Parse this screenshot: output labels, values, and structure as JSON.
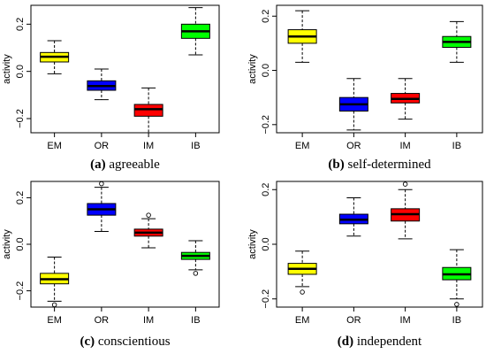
{
  "chart_data": [
    {
      "type": "box",
      "caption_letter": "(a)",
      "caption_text": "agreeable",
      "ylabel": "activity",
      "ylim": [
        -0.26,
        0.28
      ],
      "yticks": [
        -0.2,
        0.0,
        0.2
      ],
      "ytick_labels": [
        "−0.2",
        "0.0",
        "0.2"
      ],
      "categories": [
        "EM",
        "OR",
        "IM",
        "IB"
      ],
      "colors": [
        "#ffff00",
        "#0000ff",
        "#ff0000",
        "#00ff00"
      ],
      "boxes": [
        {
          "whisker_low": -0.01,
          "q1": 0.04,
          "median": 0.062,
          "q3": 0.08,
          "whisker_high": 0.13,
          "outliers": []
        },
        {
          "whisker_low": -0.12,
          "q1": -0.08,
          "median": -0.062,
          "q3": -0.04,
          "whisker_high": 0.01,
          "outliers": []
        },
        {
          "whisker_low": -0.26,
          "q1": -0.19,
          "median": -0.16,
          "q3": -0.14,
          "whisker_high": -0.07,
          "outliers": []
        },
        {
          "whisker_low": 0.07,
          "q1": 0.14,
          "median": 0.17,
          "q3": 0.2,
          "whisker_high": 0.27,
          "outliers": []
        }
      ]
    },
    {
      "type": "box",
      "caption_letter": "(b)",
      "caption_text": "self-determined",
      "ylabel": "activity",
      "ylim": [
        -0.23,
        0.24
      ],
      "yticks": [
        -0.2,
        0.0,
        0.2
      ],
      "ytick_labels": [
        "−0.2",
        "0.0",
        "0.2"
      ],
      "categories": [
        "EM",
        "OR",
        "IM",
        "IB"
      ],
      "colors": [
        "#ffff00",
        "#0000ff",
        "#ff0000",
        "#00ff00"
      ],
      "boxes": [
        {
          "whisker_low": 0.03,
          "q1": 0.1,
          "median": 0.125,
          "q3": 0.15,
          "whisker_high": 0.22,
          "outliers": []
        },
        {
          "whisker_low": -0.22,
          "q1": -0.15,
          "median": -0.125,
          "q3": -0.1,
          "whisker_high": -0.03,
          "outliers": []
        },
        {
          "whisker_low": -0.18,
          "q1": -0.12,
          "median": -0.105,
          "q3": -0.085,
          "whisker_high": -0.03,
          "outliers": []
        },
        {
          "whisker_low": 0.03,
          "q1": 0.085,
          "median": 0.105,
          "q3": 0.125,
          "whisker_high": 0.18,
          "outliers": []
        }
      ]
    },
    {
      "type": "box",
      "caption_letter": "(c)",
      "caption_text": "conscientious",
      "ylabel": "activity",
      "ylim": [
        -0.27,
        0.27
      ],
      "yticks": [
        -0.2,
        0.0,
        0.2
      ],
      "ytick_labels": [
        "−0.2",
        "0.0",
        "0.2"
      ],
      "categories": [
        "EM",
        "OR",
        "IM",
        "IB"
      ],
      "colors": [
        "#ffff00",
        "#0000ff",
        "#ff0000",
        "#00ff00"
      ],
      "boxes": [
        {
          "whisker_low": -0.245,
          "q1": -0.17,
          "median": -0.15,
          "q3": -0.125,
          "whisker_high": -0.055,
          "outliers": [
            -0.26
          ]
        },
        {
          "whisker_low": 0.055,
          "q1": 0.125,
          "median": 0.15,
          "q3": 0.175,
          "whisker_high": 0.245,
          "outliers": [
            0.26
          ]
        },
        {
          "whisker_low": -0.015,
          "q1": 0.035,
          "median": 0.05,
          "q3": 0.065,
          "whisker_high": 0.11,
          "outliers": [
            0.125
          ]
        },
        {
          "whisker_low": -0.11,
          "q1": -0.065,
          "median": -0.05,
          "q3": -0.035,
          "whisker_high": 0.015,
          "outliers": [
            -0.125
          ]
        }
      ]
    },
    {
      "type": "box",
      "caption_letter": "(d)",
      "caption_text": "independent",
      "ylabel": "activity",
      "ylim": [
        -0.23,
        0.23
      ],
      "yticks": [
        -0.2,
        0.0,
        0.2
      ],
      "ytick_labels": [
        "−0.2",
        "0.0",
        "0.2"
      ],
      "categories": [
        "EM",
        "OR",
        "IM",
        "IB"
      ],
      "colors": [
        "#ffff00",
        "#0000ff",
        "#ff0000",
        "#00ff00"
      ],
      "boxes": [
        {
          "whisker_low": -0.155,
          "q1": -0.11,
          "median": -0.09,
          "q3": -0.07,
          "whisker_high": -0.025,
          "outliers": [
            -0.175
          ]
        },
        {
          "whisker_low": 0.03,
          "q1": 0.075,
          "median": 0.09,
          "q3": 0.11,
          "whisker_high": 0.17,
          "outliers": []
        },
        {
          "whisker_low": 0.02,
          "q1": 0.085,
          "median": 0.11,
          "q3": 0.13,
          "whisker_high": 0.2,
          "outliers": [
            0.22
          ]
        },
        {
          "whisker_low": -0.2,
          "q1": -0.13,
          "median": -0.11,
          "q3": -0.085,
          "whisker_high": -0.02,
          "outliers": [
            -0.22
          ]
        }
      ]
    }
  ]
}
